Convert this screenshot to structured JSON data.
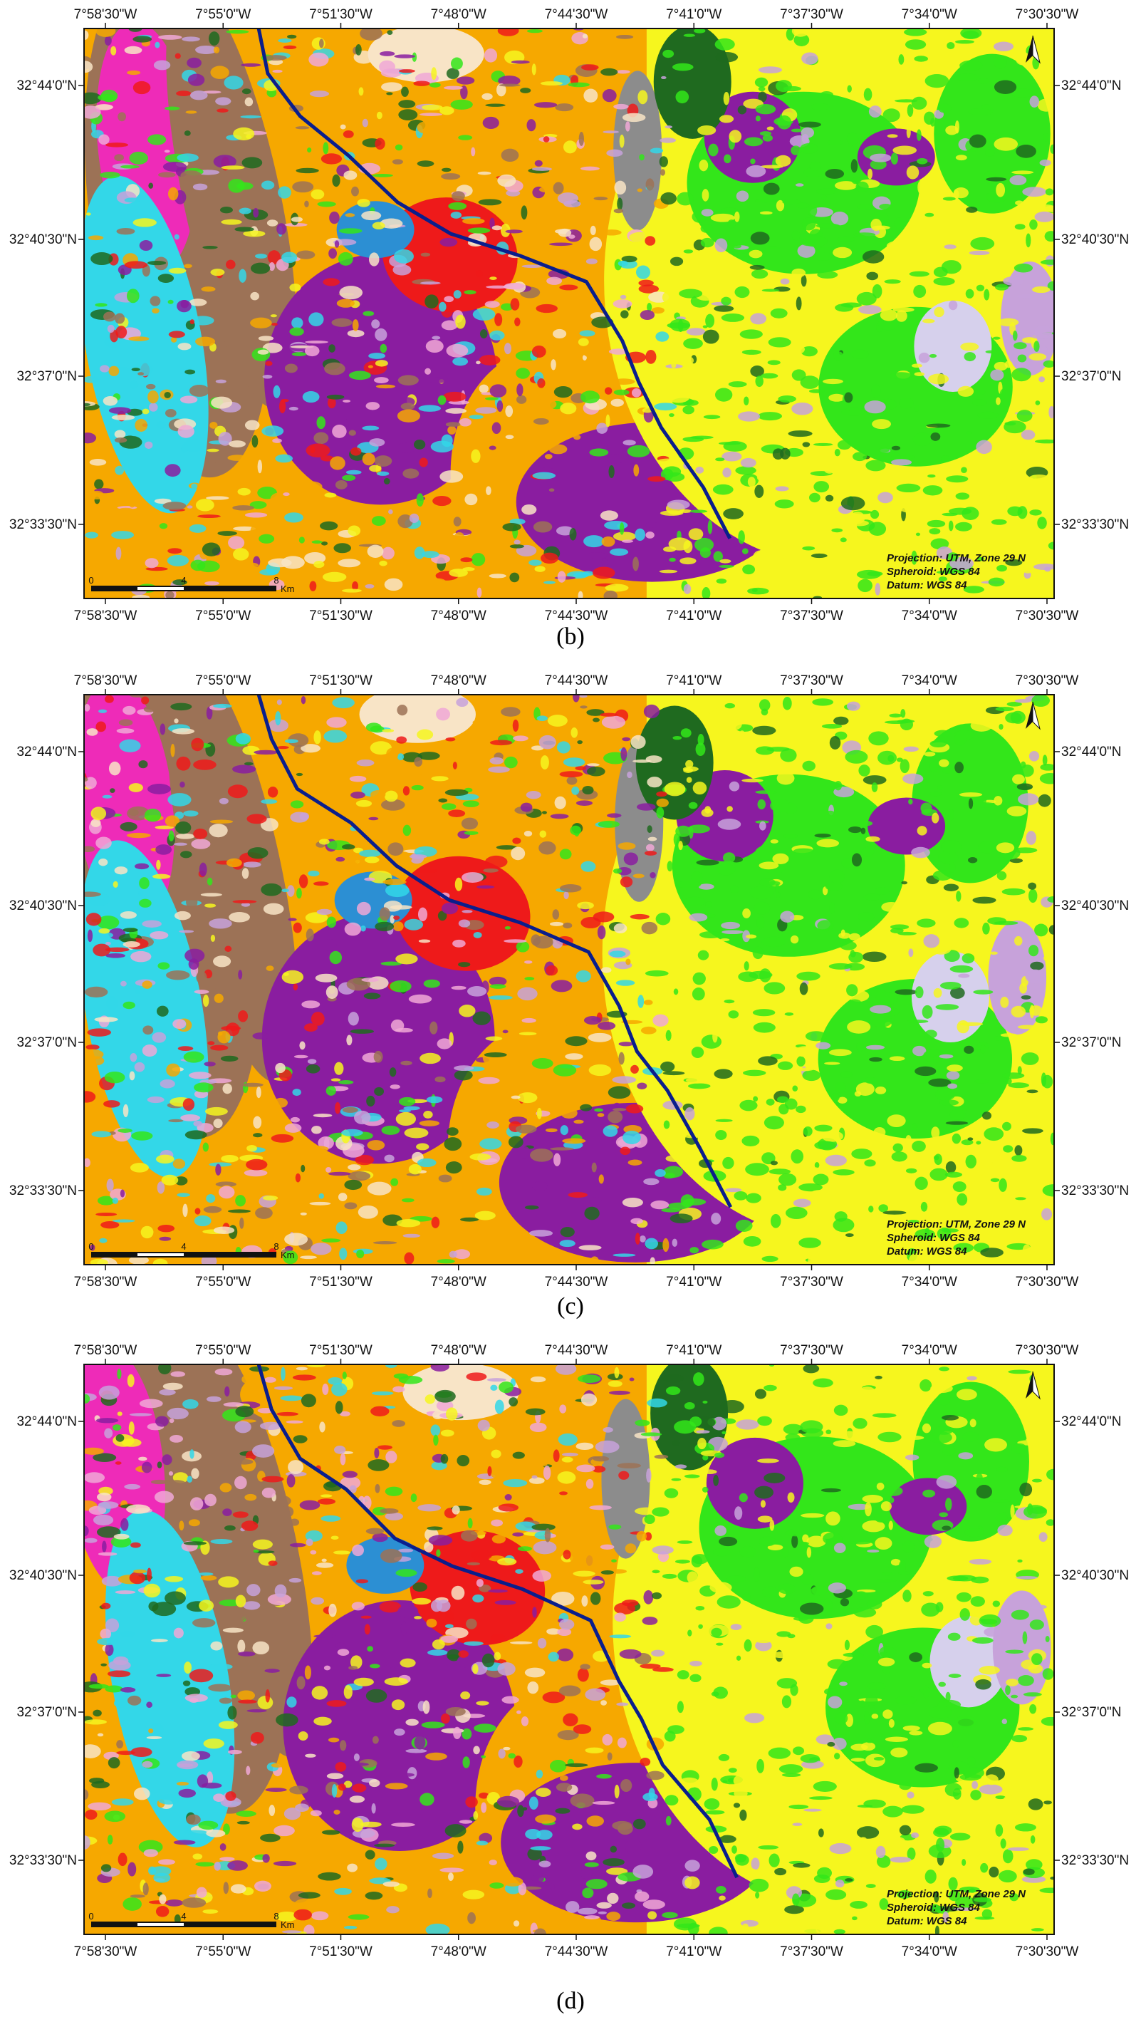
{
  "colors": {
    "orange": "#f6a800",
    "brown": "#9c7256",
    "magenta": "#ee2bb8",
    "cyan": "#33d7e8",
    "purple": "#8a1da0",
    "red": "#ee1a1a",
    "blue": "#2c8fd3",
    "darkblue": "#0a1e8c",
    "green": "#33e61a",
    "yellow": "#f6f61e",
    "darkgreen": "#1f6a1f",
    "gray": "#8c8c8c",
    "lightpurple": "#c7a2da",
    "cream": "#f8e4c6",
    "pink": "#f0a8d6",
    "lavender": "#d6d0ec"
  },
  "map": {
    "lon_ticks": [
      "7°58'30\"W",
      "7°55'0\"W",
      "7°51'30\"W",
      "7°48'0\"W",
      "7°44'30\"W",
      "7°41'0\"W",
      "7°37'30\"W",
      "7°34'0\"W",
      "7°30'30\"W"
    ],
    "lat_ticks": [
      "32°44'0\"N",
      "32°40'30\"N",
      "32°37'0\"N",
      "32°33'30\"N"
    ],
    "projection": "Projection: UTM, Zone 29 N",
    "spheroid": "Spheroid: WGS 84",
    "datum": "Datum: WGS 84",
    "scale_unit": "Km",
    "scale_values": [
      "0",
      "4",
      "8"
    ]
  },
  "panels": [
    {
      "label": "(b)",
      "id": "b"
    },
    {
      "label": "(c)",
      "id": "c"
    },
    {
      "label": "(d)",
      "id": "d"
    }
  ]
}
